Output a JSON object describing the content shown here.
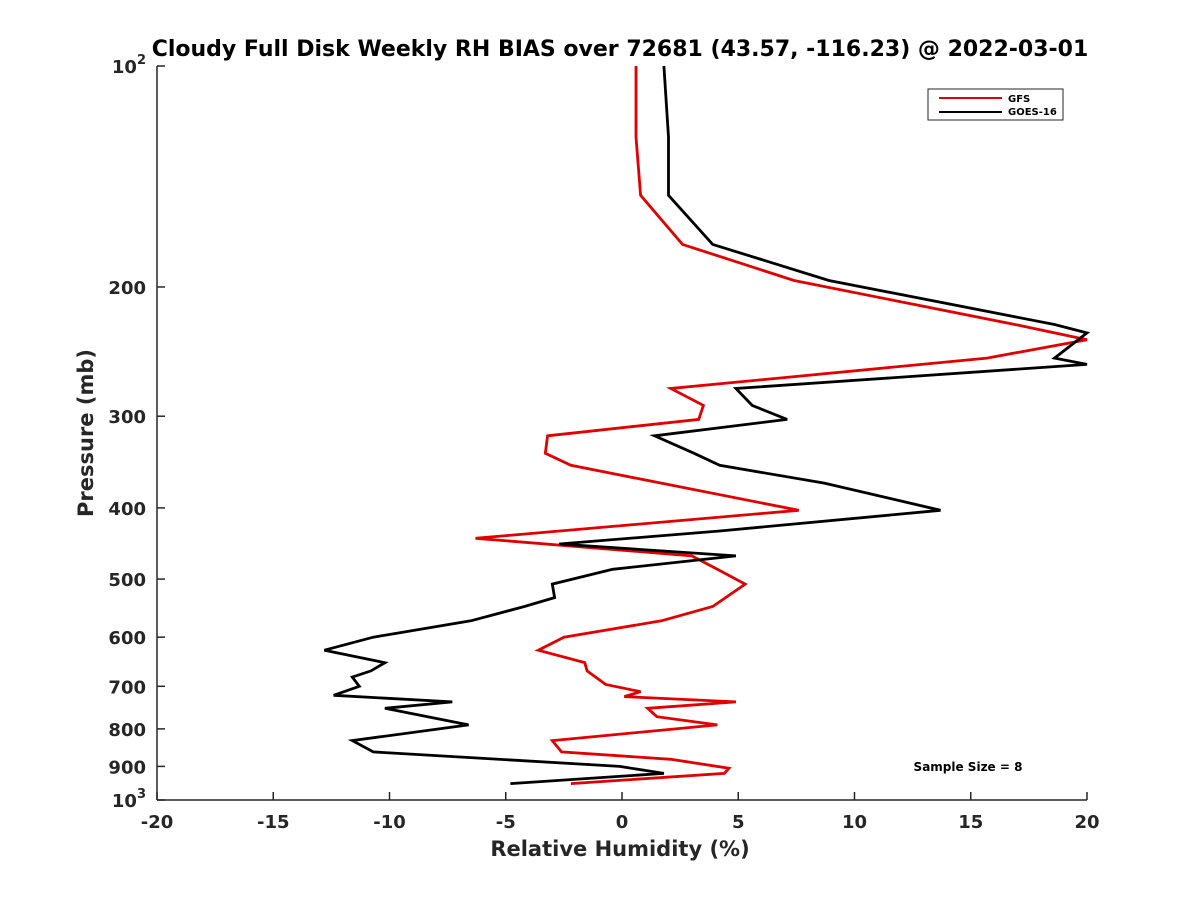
{
  "chart_data": {
    "type": "line",
    "title": "Cloudy Full Disk Weekly RH BIAS over 72681 (43.57, -116.23) @ 2022-03-01",
    "xlabel": "Relative Humidity (%)",
    "ylabel": "Pressure (mb)",
    "xlim": [
      -20,
      20
    ],
    "ylim": [
      100,
      1000
    ],
    "y_scale": "log",
    "y_reversed": true,
    "grid": false,
    "legend_position": "top-right",
    "annotation": "Sample Size = 8",
    "x_tick_labels": [
      "-20",
      "-15",
      "-10",
      "-5",
      "0",
      "5",
      "10",
      "15",
      "20"
    ],
    "y_ticks": [
      {
        "value": 100,
        "label": "10",
        "sup": "2"
      },
      {
        "value": 200,
        "label": "200",
        "sup": ""
      },
      {
        "value": 300,
        "label": "300",
        "sup": ""
      },
      {
        "value": 400,
        "label": "400",
        "sup": ""
      },
      {
        "value": 500,
        "label": "500",
        "sup": ""
      },
      {
        "value": 600,
        "label": "600",
        "sup": ""
      },
      {
        "value": 700,
        "label": "700",
        "sup": ""
      },
      {
        "value": 800,
        "label": "800",
        "sup": ""
      },
      {
        "value": 900,
        "label": "900",
        "sup": ""
      },
      {
        "value": 1000,
        "label": "10",
        "sup": "3"
      }
    ],
    "series": [
      {
        "name": "GFS",
        "color": "#e00000",
        "points": [
          [
            0.6,
            100
          ],
          [
            0.6,
            125
          ],
          [
            0.8,
            150
          ],
          [
            2.6,
            175
          ],
          [
            7.4,
            196
          ],
          [
            16.9,
            225
          ],
          [
            20,
            236
          ],
          [
            15.7,
            250
          ],
          [
            2.1,
            275
          ],
          [
            3.5,
            290
          ],
          [
            3.3,
            303
          ],
          [
            -3.2,
            319
          ],
          [
            -3.3,
            337
          ],
          [
            -2.2,
            350
          ],
          [
            7.6,
            403
          ],
          [
            -6.3,
            440
          ],
          [
            3.0,
            465
          ],
          [
            4.1,
            485
          ],
          [
            5.3,
            508
          ],
          [
            3.9,
            545
          ],
          [
            1.7,
            570
          ],
          [
            -2.5,
            600
          ],
          [
            -3.6,
            625
          ],
          [
            -1.6,
            650
          ],
          [
            -1.5,
            667
          ],
          [
            -0.7,
            696
          ],
          [
            0.8,
            712
          ],
          [
            0.1,
            723
          ],
          [
            4.9,
            735
          ],
          [
            1.1,
            750
          ],
          [
            1.5,
            770
          ],
          [
            4.1,
            790
          ],
          [
            -3.0,
            830
          ],
          [
            -2.6,
            860
          ],
          [
            2.1,
            880
          ],
          [
            4.6,
            905
          ],
          [
            4.4,
            920
          ],
          [
            -2.2,
            950
          ]
        ]
      },
      {
        "name": "GOES-16",
        "color": "#000000",
        "points": [
          [
            1.8,
            100
          ],
          [
            2.0,
            125
          ],
          [
            2.0,
            150
          ],
          [
            3.9,
            175
          ],
          [
            8.9,
            196
          ],
          [
            18.6,
            225
          ],
          [
            20,
            231
          ],
          [
            18.6,
            250
          ],
          [
            20,
            255
          ],
          [
            4.9,
            275
          ],
          [
            5.6,
            290
          ],
          [
            7.1,
            303
          ],
          [
            1.4,
            319
          ],
          [
            3.1,
            337
          ],
          [
            4.2,
            350
          ],
          [
            8.7,
            370
          ],
          [
            13.7,
            403
          ],
          [
            4.2,
            430
          ],
          [
            -2.7,
            448
          ],
          [
            4.9,
            465
          ],
          [
            -0.4,
            485
          ],
          [
            -3.0,
            508
          ],
          [
            -2.9,
            530
          ],
          [
            -4.2,
            545
          ],
          [
            -6.5,
            570
          ],
          [
            -10.7,
            600
          ],
          [
            -12.8,
            625
          ],
          [
            -10.2,
            650
          ],
          [
            -10.8,
            667
          ],
          [
            -11.6,
            680
          ],
          [
            -11.3,
            700
          ],
          [
            -12.4,
            720
          ],
          [
            -7.3,
            735
          ],
          [
            -10.2,
            750
          ],
          [
            -6.6,
            790
          ],
          [
            -11.6,
            830
          ],
          [
            -10.7,
            860
          ],
          [
            -0.1,
            900
          ],
          [
            1.8,
            920
          ],
          [
            -4.8,
            950
          ]
        ]
      }
    ]
  }
}
